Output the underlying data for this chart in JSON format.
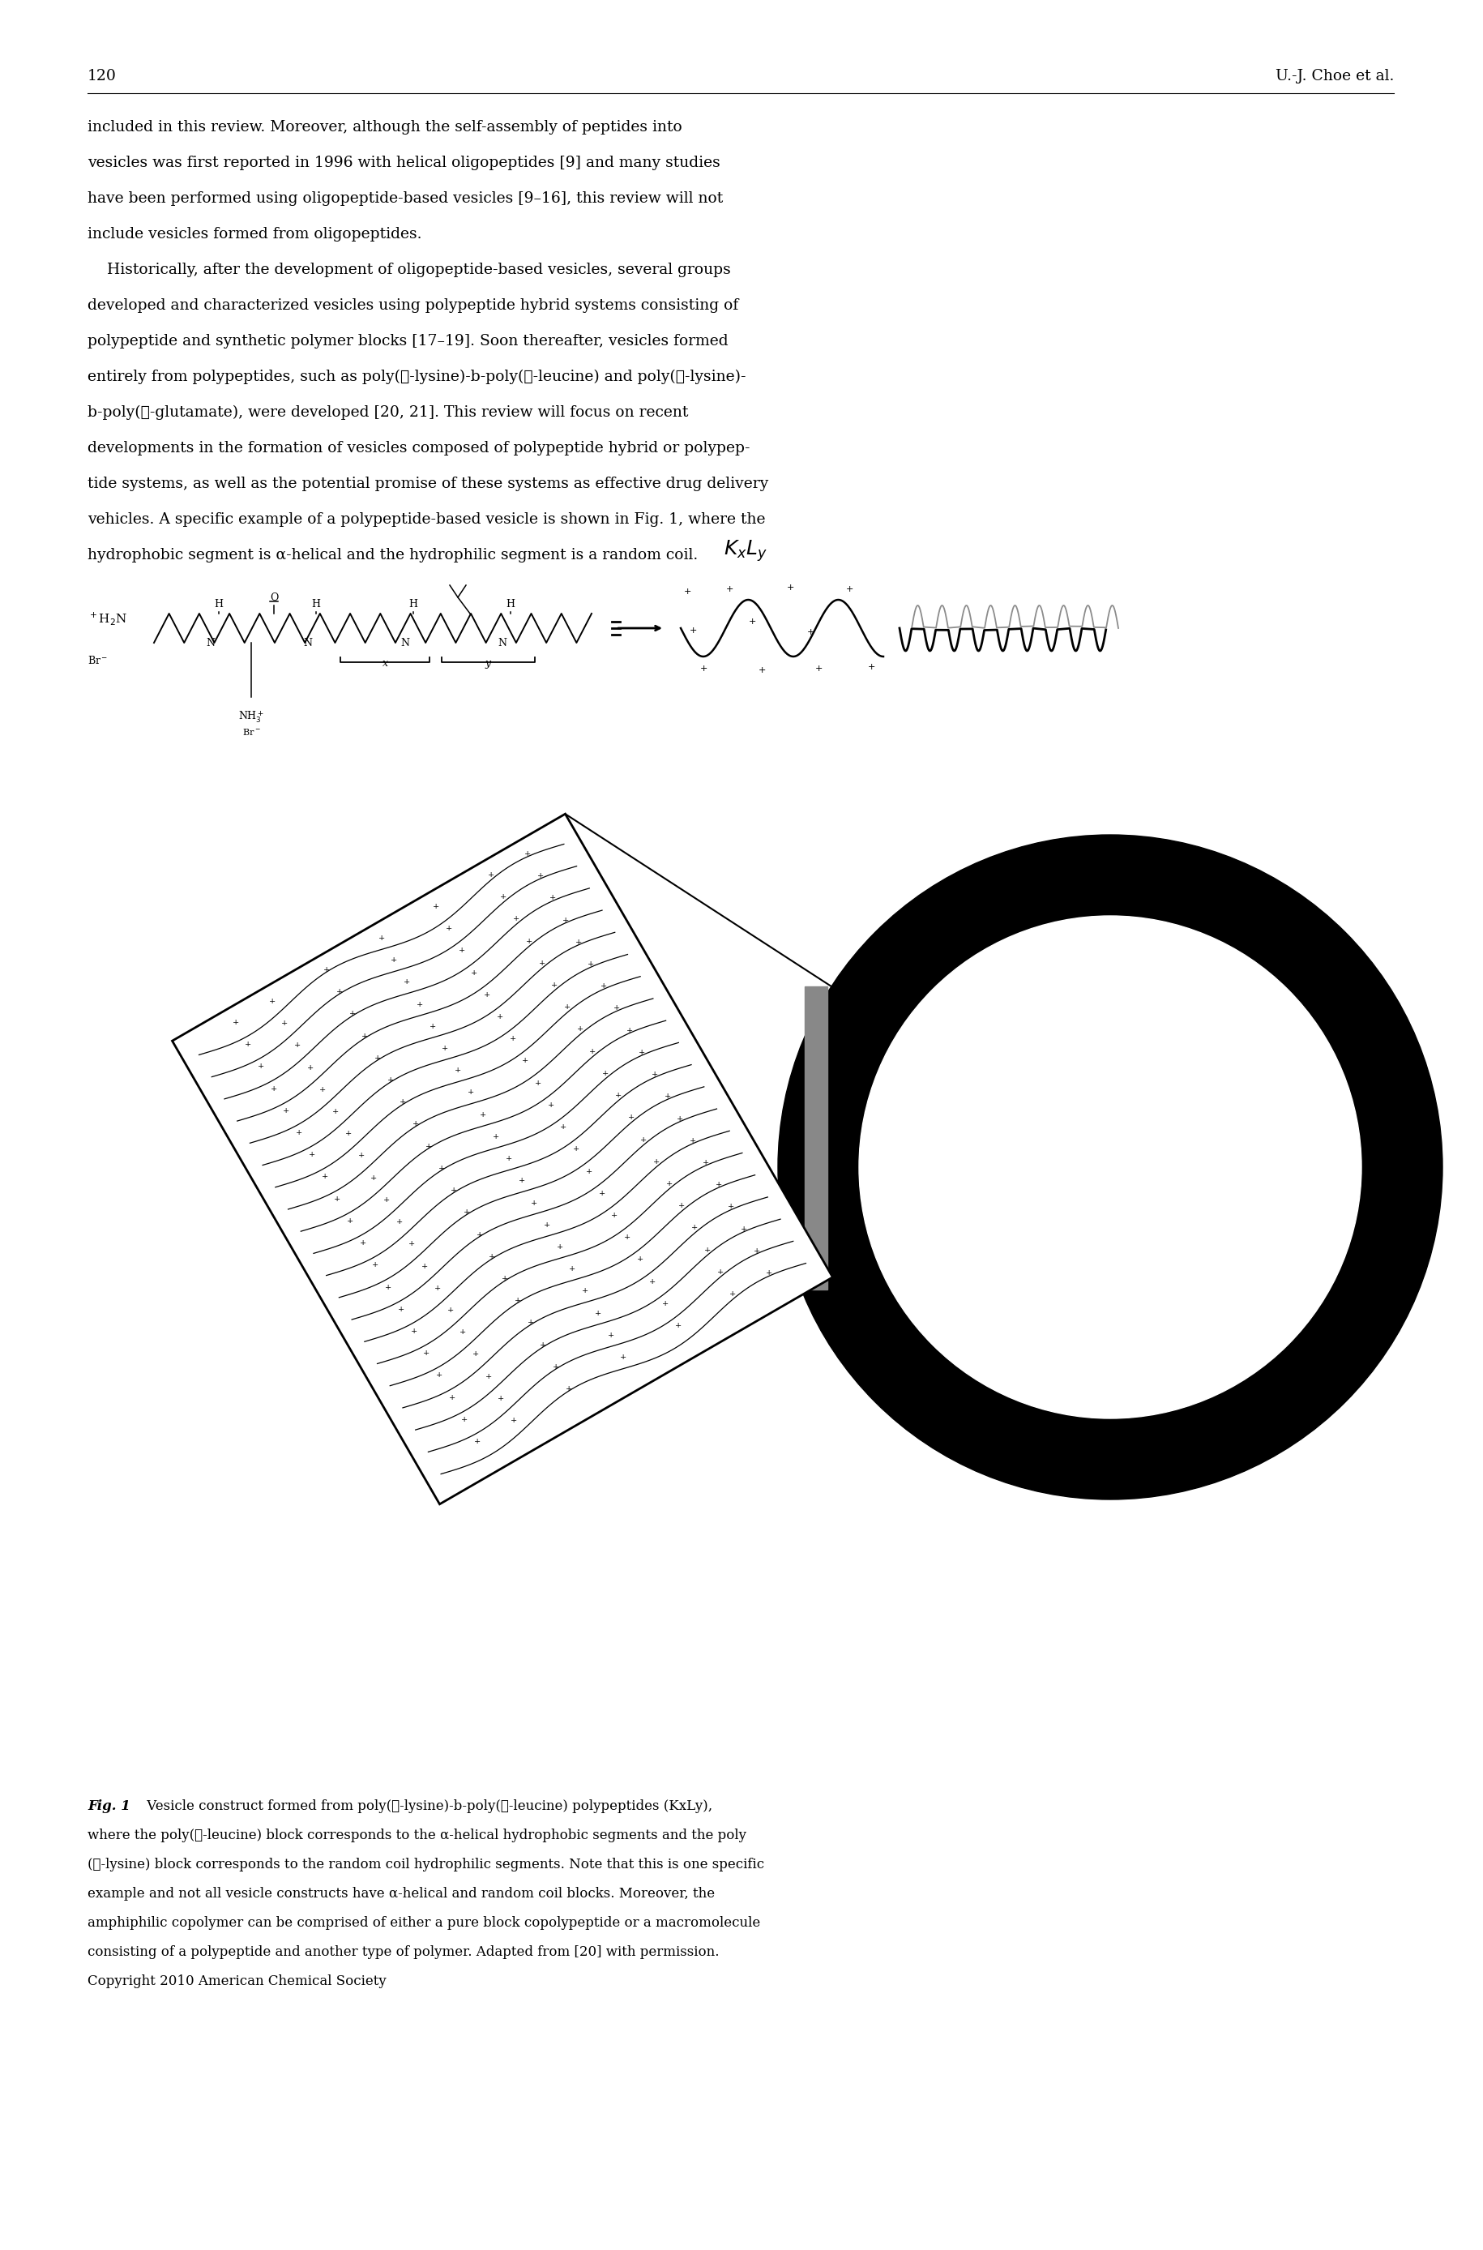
{
  "page_number": "120",
  "header_right": "U.-J. Choe et al.",
  "body_text_lines": [
    "included in this review. Moreover, although the self-assembly of peptides into",
    "vesicles was first reported in 1996 with helical oligopeptides [9] and many studies",
    "have been performed using oligopeptide-based vesicles [9–16], this review will not",
    "include vesicles formed from oligopeptides.",
    "    Historically, after the development of oligopeptide-based vesicles, several groups",
    "developed and characterized vesicles using polypeptide hybrid systems consisting of",
    "polypeptide and synthetic polymer blocks [17–19]. Soon thereafter, vesicles formed",
    "entirely from polypeptides, such as poly(ℓ-lysine)-b-poly(ℓ-leucine) and poly(ℓ-lysine)-",
    "b-poly(ℓ-glutamate), were developed [20, 21]. This review will focus on recent",
    "developments in the formation of vesicles composed of polypeptide hybrid or polypep-",
    "tide systems, as well as the potential promise of these systems as effective drug delivery",
    "vehicles. A specific example of a polypeptide-based vesicle is shown in Fig. 1, where the",
    "hydrophobic segment is α-helical and the hydrophilic segment is a random coil."
  ],
  "caption_bold": "Fig. 1",
  "caption_lines": [
    " Vesicle construct formed from poly(ℓ-lysine)-b-poly(ℓ-leucine) polypeptides (KxLy),",
    "where the poly(ℓ-leucine) block corresponds to the α-helical hydrophobic segments and the poly",
    "(ℓ-lysine) block corresponds to the random coil hydrophilic segments. Note that this is one specific",
    "example and not all vesicle constructs have α-helical and random coil blocks. Moreover, the",
    "amphiphilic copolymer can be comprised of either a pure block copolypeptide or a macromolecule",
    "consisting of a polypeptide and another type of polymer. Adapted from [20] with permission.",
    "Copyright 2010 American Chemical Society"
  ],
  "background_color": "#ffffff",
  "text_color": "#000000",
  "font_size_body": 13.5,
  "font_size_caption": 12.0,
  "font_size_header": 13.5
}
